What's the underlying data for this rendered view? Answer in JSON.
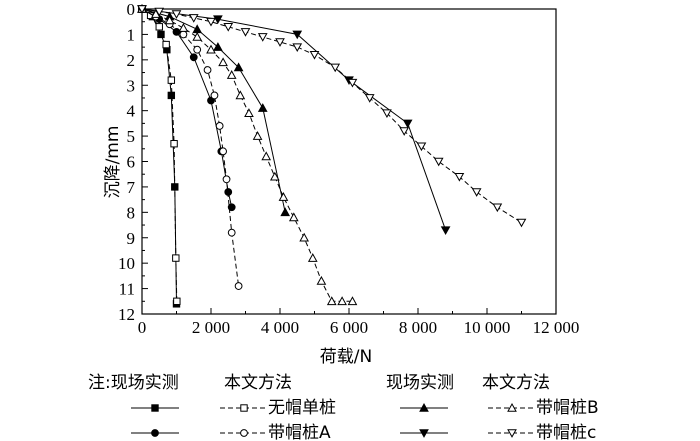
{
  "chart_data": {
    "type": "line",
    "xlabel": "荷载/N",
    "ylabel": "沉降/mm",
    "xlim": [
      0,
      12000
    ],
    "ylim": [
      0,
      12
    ],
    "y_inverted": true,
    "grid": false,
    "x_ticks": [
      0,
      2000,
      4000,
      6000,
      8000,
      10000,
      12000
    ],
    "x_tick_labels": [
      "0",
      "2 000",
      "4 000",
      "6 000",
      "8 000",
      "10 000",
      "12 000"
    ],
    "y_ticks": [
      0,
      1,
      2,
      3,
      4,
      5,
      6,
      7,
      8,
      9,
      10,
      11,
      12
    ],
    "y_tick_labels": [
      "0",
      "1",
      "2",
      "3",
      "4",
      "5",
      "6",
      "7",
      "8",
      "9",
      "10",
      "11",
      "12"
    ],
    "legend": {
      "note": "注:现场实测",
      "method_header_left": "本文方法",
      "field_header_right": "现场实测",
      "method_header_right": "本文方法",
      "entries": [
        "无帽单桩",
        "带帽桩A",
        "带帽桩B",
        "带帽桩c"
      ]
    },
    "series": [
      {
        "group": "无帽单桩",
        "kind": "field",
        "marker": "filled-square",
        "dash": false,
        "color": "#000000",
        "x": [
          0,
          300,
          550,
          720,
          850,
          950,
          1000
        ],
        "y": [
          0,
          0.3,
          1.0,
          1.6,
          3.4,
          7.0,
          11.6
        ]
      },
      {
        "group": "无帽单桩",
        "kind": "method",
        "marker": "open-square",
        "dash": true,
        "color": "#000000",
        "x": [
          0,
          250,
          500,
          700,
          850,
          930,
          980,
          1010
        ],
        "y": [
          0,
          0.25,
          0.7,
          1.4,
          2.8,
          5.3,
          9.8,
          11.5
        ]
      },
      {
        "group": "带帽桩A",
        "kind": "field",
        "marker": "filled-circle",
        "dash": false,
        "color": "#000000",
        "x": [
          0,
          500,
          1000,
          1500,
          2000,
          2300,
          2500,
          2600
        ],
        "y": [
          0,
          0.4,
          0.9,
          1.9,
          3.6,
          5.6,
          7.2,
          7.8
        ]
      },
      {
        "group": "带帽桩A",
        "kind": "method",
        "marker": "open-circle",
        "dash": true,
        "color": "#000000",
        "x": [
          0,
          400,
          800,
          1200,
          1600,
          1900,
          2100,
          2250,
          2350,
          2450,
          2600,
          2800
        ],
        "y": [
          0,
          0.3,
          0.6,
          1.0,
          1.6,
          2.4,
          3.4,
          4.6,
          5.6,
          6.7,
          8.8,
          10.9
        ]
      },
      {
        "group": "带帽桩B",
        "kind": "field",
        "marker": "filled-triangle",
        "dash": false,
        "color": "#000000",
        "x": [
          0,
          800,
          1600,
          2200,
          2800,
          3500,
          4150
        ],
        "y": [
          0,
          0.3,
          0.8,
          1.5,
          2.3,
          3.9,
          8.0
        ]
      },
      {
        "group": "带帽桩B",
        "kind": "method",
        "marker": "open-triangle",
        "dash": true,
        "color": "#000000",
        "x": [
          0,
          400,
          800,
          1200,
          1600,
          2000,
          2350,
          2600,
          2850,
          3100,
          3350,
          3600,
          3850,
          4100,
          4400,
          4700,
          4950,
          5200,
          5500,
          5800,
          6100
        ],
        "y": [
          0,
          0.2,
          0.45,
          0.75,
          1.1,
          1.6,
          2.1,
          2.6,
          3.4,
          4.1,
          5.0,
          5.8,
          6.6,
          7.4,
          8.2,
          9.0,
          9.8,
          10.7,
          11.5,
          11.5,
          11.5
        ]
      },
      {
        "group": "带帽桩c",
        "kind": "field",
        "marker": "filled-inverted-triangle",
        "dash": false,
        "color": "#000000",
        "x": [
          0,
          2200,
          4500,
          6000,
          7700,
          8800
        ],
        "y": [
          0,
          0.4,
          1.0,
          2.8,
          4.5,
          8.7
        ]
      },
      {
        "group": "带帽桩c",
        "kind": "method",
        "marker": "open-inverted-triangle",
        "dash": true,
        "color": "#000000",
        "x": [
          0,
          500,
          1000,
          1500,
          2000,
          2500,
          3000,
          3500,
          4000,
          4500,
          5000,
          5600,
          6100,
          6600,
          7100,
          7600,
          8100,
          8600,
          9200,
          9700,
          10300,
          11000
        ],
        "y": [
          0,
          0.1,
          0.2,
          0.35,
          0.5,
          0.7,
          0.9,
          1.1,
          1.3,
          1.5,
          1.8,
          2.3,
          2.9,
          3.5,
          4.1,
          4.8,
          5.4,
          6.0,
          6.6,
          7.2,
          7.8,
          8.4
        ]
      }
    ]
  }
}
